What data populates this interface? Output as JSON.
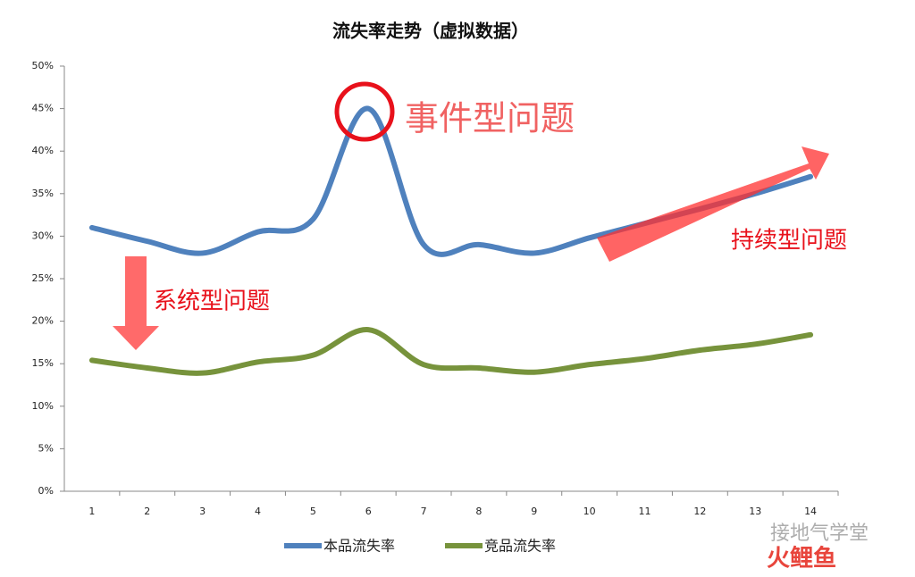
{
  "chart_data": {
    "type": "line",
    "title": "流失率走势（虚拟数据）",
    "categories": [
      "1",
      "2",
      "3",
      "4",
      "5",
      "6",
      "7",
      "8",
      "9",
      "10",
      "11",
      "12",
      "13",
      "14"
    ],
    "series": [
      {
        "name": "本品流失率",
        "color": "#4f81bd",
        "values": [
          31,
          29.4,
          28,
          30.5,
          32,
          45,
          29,
          29,
          28,
          29.8,
          31.5,
          33.2,
          35,
          37
        ]
      },
      {
        "name": "竞品流失率",
        "color": "#77933c",
        "values": [
          15.4,
          14.5,
          13.9,
          15.2,
          16,
          19,
          14.9,
          14.5,
          14,
          14.9,
          15.6,
          16.6,
          17.3,
          18.4
        ]
      }
    ],
    "ylim": [
      0,
      50
    ],
    "yticks": [
      {
        "value": 0,
        "label": "0%"
      },
      {
        "value": 5,
        "label": "5%"
      },
      {
        "value": 10,
        "label": "10%"
      },
      {
        "value": 15,
        "label": "15%"
      },
      {
        "value": 20,
        "label": "20%"
      },
      {
        "value": 25,
        "label": "25%"
      },
      {
        "value": 30,
        "label": "30%"
      },
      {
        "value": 35,
        "label": "35%"
      },
      {
        "value": 40,
        "label": "40%"
      },
      {
        "value": 45,
        "label": "45%"
      },
      {
        "value": 50,
        "label": "50%"
      }
    ],
    "grid": false,
    "legend": "bottom",
    "annotations": [
      "事件型问题",
      "持续型问题",
      "系统型问题"
    ],
    "watermark": [
      "接地气学堂",
      "火鲤鱼"
    ]
  }
}
